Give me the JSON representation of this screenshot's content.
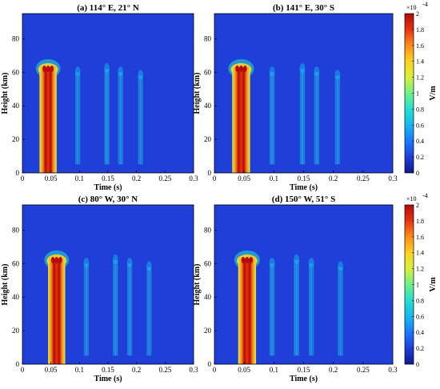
{
  "colormap": [
    "#0d1a8f",
    "#1f3fd8",
    "#1a78ff",
    "#15b8f0",
    "#22e0d0",
    "#6ff08a",
    "#d8f03a",
    "#ffd21f",
    "#ff8c1a",
    "#e8330f",
    "#b00a0a"
  ],
  "chart_data": [
    {
      "type": "heatmap",
      "title": "(a) 114° E, 21° N",
      "xlabel": "Time (s)",
      "ylabel": "Height (km)",
      "xlim": [
        0,
        0.3
      ],
      "ylim": [
        0,
        95
      ],
      "xticks": [
        "0",
        "0.05",
        "0.1",
        "0.15",
        "0.2",
        "0.25",
        "0.3"
      ],
      "yticks": [
        "0",
        "20",
        "40",
        "60",
        "80"
      ],
      "colorbar": null,
      "main_pulse": {
        "t_start": 0.03,
        "t_end": 0.06,
        "top_km": 65,
        "value": 0.0002
      },
      "echoes": [
        {
          "t": 0.097,
          "top_km": 62,
          "value": 3e-05
        },
        {
          "t": 0.148,
          "top_km": 64,
          "value": 5e-05
        },
        {
          "t": 0.172,
          "top_km": 62,
          "value": 3e-05
        },
        {
          "t": 0.207,
          "top_km": 60,
          "value": 2e-05
        }
      ]
    },
    {
      "type": "heatmap",
      "title": "(b) 141° E, 30° S",
      "xlabel": "Time (s)",
      "ylabel": "Height (km)",
      "xlim": [
        0,
        0.3
      ],
      "ylim": [
        0,
        95
      ],
      "xticks": [
        "0",
        "0.05",
        "0.1",
        "0.15",
        "0.2",
        "0.25",
        "0.3"
      ],
      "yticks": [
        "0",
        "20",
        "40",
        "60",
        "80"
      ],
      "colorbar": {
        "label": "V/m",
        "multiplier": "×10",
        "exponent": "-4",
        "ticks": [
          "0",
          "0.2",
          "0.4",
          "0.6",
          "0.8",
          "1",
          "1.2",
          "1.4",
          "1.6",
          "1.8",
          "2"
        ],
        "range": [
          0,
          2
        ]
      },
      "main_pulse": {
        "t_start": 0.03,
        "t_end": 0.06,
        "top_km": 65,
        "value": 0.0002
      },
      "echoes": [
        {
          "t": 0.097,
          "top_km": 62,
          "value": 3e-05
        },
        {
          "t": 0.148,
          "top_km": 64,
          "value": 5e-05
        },
        {
          "t": 0.172,
          "top_km": 62,
          "value": 3e-05
        },
        {
          "t": 0.207,
          "top_km": 60,
          "value": 2e-05
        }
      ]
    },
    {
      "type": "heatmap",
      "title": "(c) 80° W, 30° N",
      "xlabel": "Time (s)",
      "ylabel": "Height (km)",
      "xlim": [
        0,
        0.3
      ],
      "ylim": [
        0,
        95
      ],
      "xticks": [
        "0",
        "0.05",
        "0.1",
        "0.15",
        "0.2",
        "0.25",
        "0.3"
      ],
      "yticks": [
        "0",
        "20",
        "40",
        "60",
        "80"
      ],
      "colorbar": null,
      "main_pulse": {
        "t_start": 0.045,
        "t_end": 0.075,
        "top_km": 65,
        "value": 0.0002
      },
      "echoes": [
        {
          "t": 0.112,
          "top_km": 62,
          "value": 3e-05
        },
        {
          "t": 0.163,
          "top_km": 64,
          "value": 5e-05
        },
        {
          "t": 0.188,
          "top_km": 62,
          "value": 3e-05
        },
        {
          "t": 0.222,
          "top_km": 60,
          "value": 2e-05
        }
      ]
    },
    {
      "type": "heatmap",
      "title": "(d) 150° W, 51° S",
      "xlabel": "Time (s)",
      "ylabel": "Height (km)",
      "xlim": [
        0,
        0.3
      ],
      "ylim": [
        0,
        95
      ],
      "xticks": [
        "0",
        "0.05",
        "0.1",
        "0.15",
        "0.2",
        "0.25",
        "0.3"
      ],
      "yticks": [
        "0",
        "20",
        "40",
        "60",
        "80"
      ],
      "colorbar": {
        "label": "V/m",
        "multiplier": "×10",
        "exponent": "-4",
        "ticks": [
          "0",
          "0.2",
          "0.4",
          "0.6",
          "0.8",
          "1",
          "1.2",
          "1.4",
          "1.6",
          "1.8",
          "2"
        ],
        "range": [
          0,
          2
        ]
      },
      "main_pulse": {
        "t_start": 0.04,
        "t_end": 0.07,
        "top_km": 65,
        "value": 0.0002
      },
      "echoes": [
        {
          "t": 0.097,
          "top_km": 62,
          "value": 3e-05
        },
        {
          "t": 0.138,
          "top_km": 64,
          "value": 5e-05
        },
        {
          "t": 0.163,
          "top_km": 62,
          "value": 3e-05
        },
        {
          "t": 0.212,
          "top_km": 60,
          "value": 2e-05
        }
      ]
    }
  ]
}
